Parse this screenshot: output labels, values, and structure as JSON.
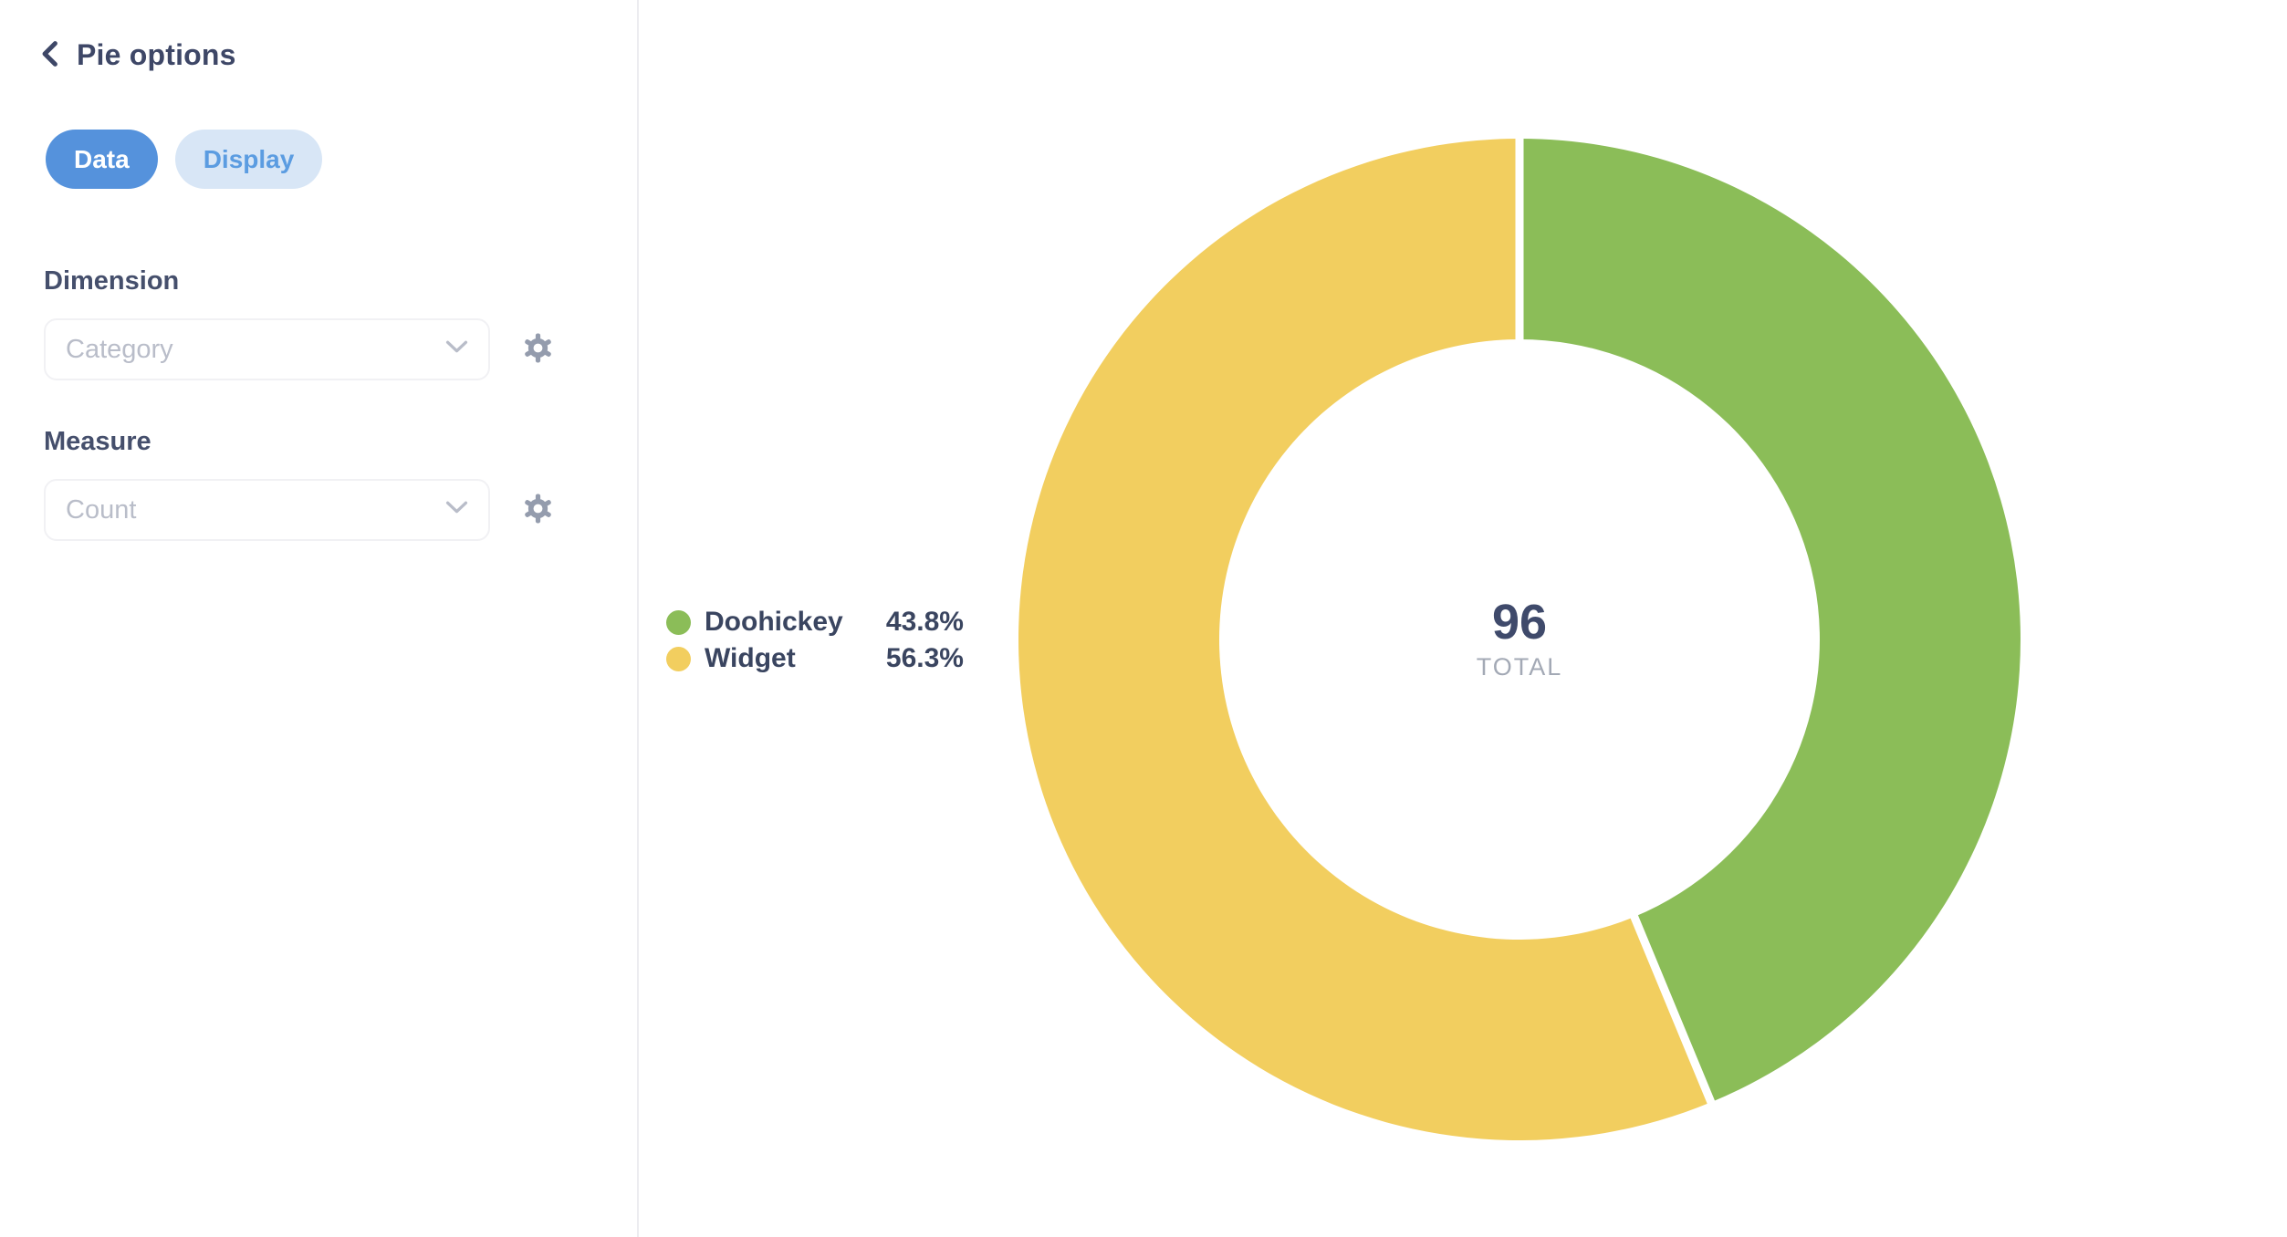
{
  "sidebar": {
    "title": "Pie options",
    "tabs": [
      {
        "label": "Data",
        "active": true
      },
      {
        "label": "Display",
        "active": false
      }
    ],
    "dimension": {
      "label": "Dimension",
      "value": "Category"
    },
    "measure": {
      "label": "Measure",
      "value": "Count"
    }
  },
  "colors": {
    "accent_blue": "#5592dc",
    "tab_inactive_bg": "#d8e6f6",
    "tab_inactive_text": "#5b9ce1",
    "text_dark": "#3e4767",
    "muted_gray": "#b9bdc9",
    "icon_gray": "#949cad",
    "divider": "#ececf0"
  },
  "chart_data": {
    "type": "pie",
    "donut": true,
    "title": "",
    "legend_position": "left",
    "start_angle": "top",
    "direction": "clockwise",
    "inner_radius_ratio": 0.6,
    "slice_gap_color": "#ffffff",
    "categories": [
      "Doohickey",
      "Widget"
    ],
    "series": [
      {
        "name": "Doohickey",
        "percent": 43.8,
        "percent_label": "43.8%",
        "color": "#8bbd58"
      },
      {
        "name": "Widget",
        "percent": 56.3,
        "percent_label": "56.3%",
        "color": "#f2ce5f"
      }
    ],
    "total_value": "96",
    "total_label": "TOTAL"
  }
}
